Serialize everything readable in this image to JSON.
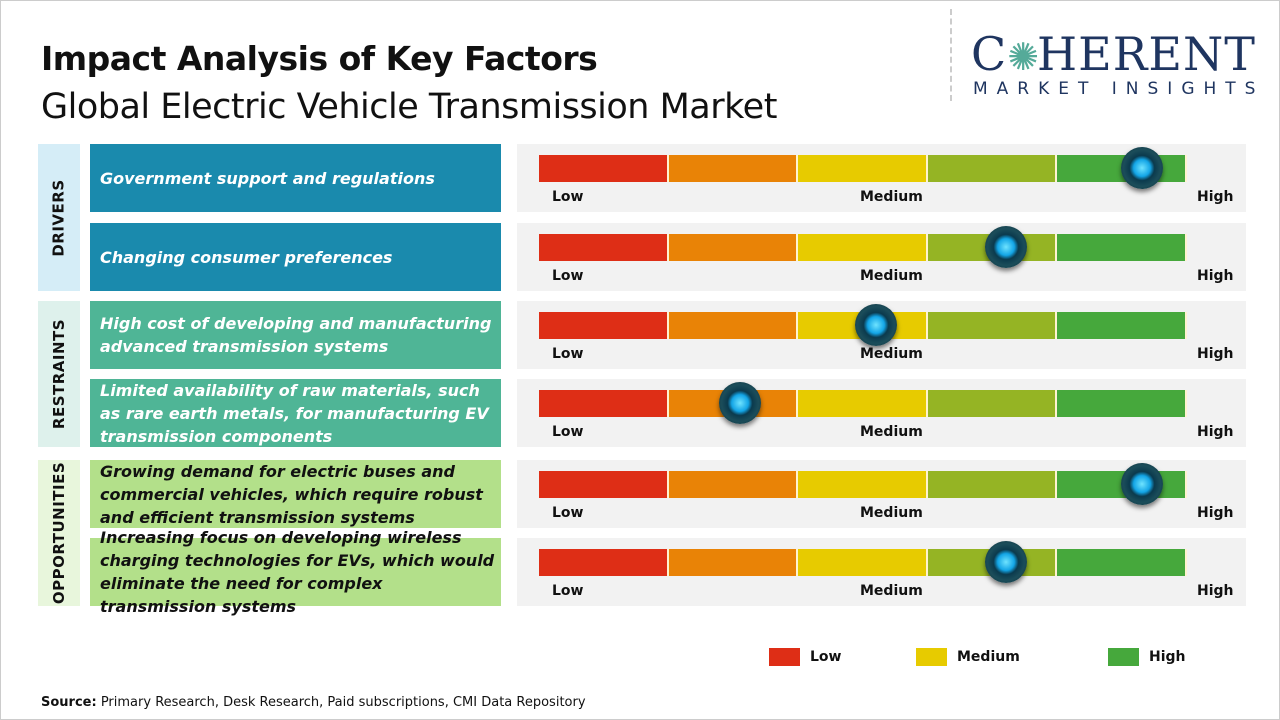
{
  "title": "Impact Analysis of Key Factors",
  "subtitle": "Global Electric Vehicle Transmission Market",
  "logo": {
    "main": "COHERENT",
    "sub": "MARKET INSIGHTS"
  },
  "colors": {
    "low": "#de2e16",
    "low_medium": "#e98306",
    "medium": "#e7cb00",
    "medium_high": "#95b424",
    "high": "#46a83c",
    "drivers": "#1a8aad",
    "restraints": "#4fb596",
    "opportunities": "#b3e08a"
  },
  "chart_data": {
    "type": "gauge",
    "scale_labels": [
      "Low",
      "Medium",
      "High"
    ],
    "groups": [
      {
        "name": "DRIVERS",
        "side_color": "#d5edf7",
        "box_color": "#1a8aad",
        "text_color": "#ffffff",
        "factors": [
          {
            "label": "Government support and regulations",
            "impact": 0.93
          },
          {
            "label": "Changing consumer preferences",
            "impact": 0.72
          }
        ]
      },
      {
        "name": "RESTRAINTS",
        "side_color": "#def1ec",
        "box_color": "#4fb596",
        "text_color": "#ffffff",
        "factors": [
          {
            "label": "High cost of developing and manufacturing advanced transmission systems",
            "impact": 0.52
          },
          {
            "label": "Limited availability of raw materials, such as rare earth metals, for manufacturing EV transmission components",
            "impact": 0.31
          }
        ]
      },
      {
        "name": "OPPORTUNITIES",
        "side_color": "#e8f6dc",
        "box_color": "#b3e08a",
        "text_color": "#111111",
        "factors": [
          {
            "label": "Growing demand for electric buses and commercial vehicles, which require robust and efficient transmission systems",
            "impact": 0.93
          },
          {
            "label": "Increasing focus on developing wireless charging technologies for EVs, which would eliminate the need for complex transmission systems",
            "impact": 0.72
          }
        ]
      }
    ],
    "legend": [
      {
        "label": "Low",
        "color": "#de2e16"
      },
      {
        "label": "Medium",
        "color": "#e7cb00"
      },
      {
        "label": "High",
        "color": "#46a83c"
      }
    ]
  },
  "source": {
    "label": "Source:",
    "text": " Primary Research, Desk Research, Paid subscriptions, CMI Data Repository"
  }
}
